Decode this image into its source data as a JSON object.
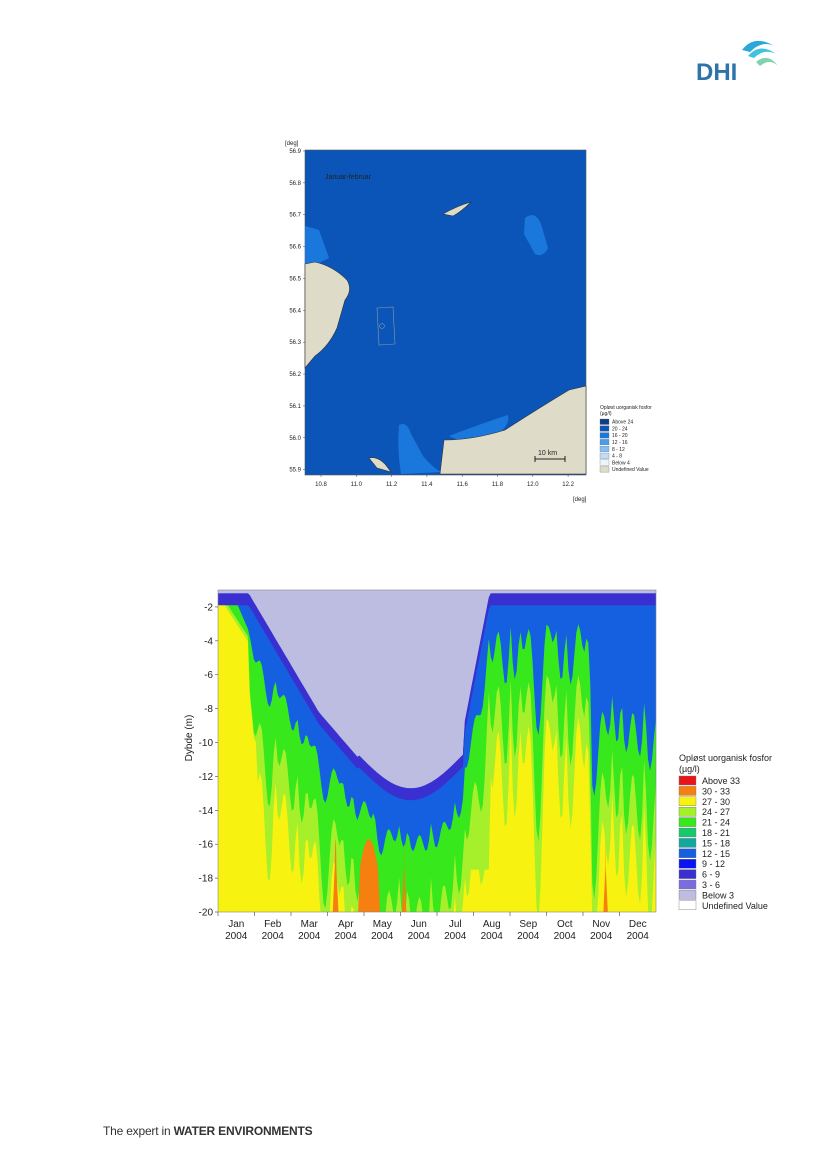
{
  "header": {
    "logo_text": "DHI"
  },
  "map": {
    "y_unit": "[deg]",
    "x_unit": "[deg]",
    "y_ticks": [
      "56.9",
      "56.8",
      "56.7",
      "56.6",
      "56.5",
      "56.4",
      "56.3",
      "56.2",
      "56.1",
      "56.0",
      "55.9"
    ],
    "x_ticks": [
      "10.8",
      "11.0",
      "11.2",
      "11.4",
      "11.6",
      "11.8",
      "12.0",
      "12.2"
    ],
    "period_label": "Januar-februar",
    "scale_label": "10 km",
    "legend_title_1": "Opløst uorganisk fosfor",
    "legend_title_2": "(µg/l)",
    "legend": [
      {
        "label": "Above 24",
        "color": "#0a3f86"
      },
      {
        "label": "20 - 24",
        "color": "#0b55b8"
      },
      {
        "label": "16 - 20",
        "color": "#1a78dd"
      },
      {
        "label": "12 - 16",
        "color": "#4a9cf0"
      },
      {
        "label": "8 - 12",
        "color": "#86bff5"
      },
      {
        "label": "4 - 8",
        "color": "#c2dcf8"
      },
      {
        "label": "Below 4",
        "color": "#eef4fc"
      },
      {
        "label": "Undefined Value",
        "color": "#dedbc8"
      }
    ]
  },
  "profile": {
    "ylabel": "Dybde (m)",
    "y_ticks": [
      "-2",
      "-4",
      "-6",
      "-8",
      "-10",
      "-12",
      "-14",
      "-16",
      "-18",
      "-20"
    ],
    "months": [
      "Jan",
      "Feb",
      "Mar",
      "Apr",
      "May",
      "Jun",
      "Jul",
      "Aug",
      "Sep",
      "Oct",
      "Nov",
      "Dec"
    ],
    "year": "2004",
    "legend_title_1": "Opløst uorganisk fosfor",
    "legend_title_2": "(µg/l)",
    "legend": [
      {
        "label": "Above 33",
        "color": "#e8141b"
      },
      {
        "label": "30 - 33",
        "color": "#f57f0f"
      },
      {
        "label": "27 - 30",
        "color": "#f7f20f"
      },
      {
        "label": "24 - 27",
        "color": "#a6ef2b"
      },
      {
        "label": "21 - 24",
        "color": "#36e81c"
      },
      {
        "label": "18 - 21",
        "color": "#18c96c"
      },
      {
        "label": "15 - 18",
        "color": "#12a8a0"
      },
      {
        "label": "12 - 15",
        "color": "#1460e0"
      },
      {
        "label": "9 - 12",
        "color": "#0a14f0"
      },
      {
        "label": "6 - 9",
        "color": "#3a2fd0"
      },
      {
        "label": "3 - 6",
        "color": "#7d6ce0"
      },
      {
        "label": "Below 3",
        "color": "#bcbde0"
      },
      {
        "label": "Undefined Value",
        "color": "#ffffff"
      }
    ]
  },
  "footer": {
    "text_light": "The expert in ",
    "text_bold": "WATER ENVIRONMENTS"
  }
}
